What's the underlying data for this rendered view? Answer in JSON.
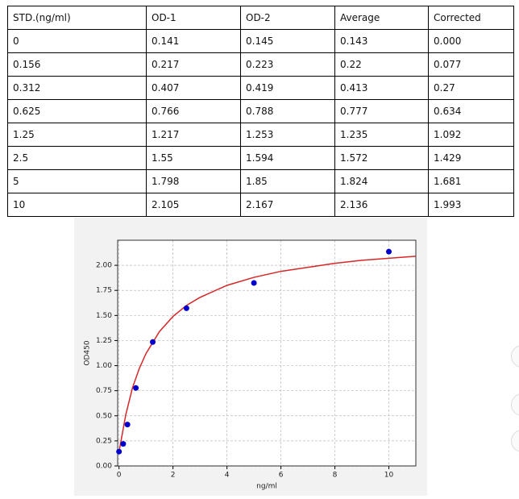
{
  "table": {
    "header": [
      "STD.(ng/ml)",
      "OD-1",
      "OD-2",
      "Average",
      "Corrected"
    ],
    "rows": [
      [
        "0",
        "0.141",
        "0.145",
        "0.143",
        "0.000"
      ],
      [
        "0.156",
        "0.217",
        "0.223",
        "0.22",
        "0.077"
      ],
      [
        "0.312",
        "0.407",
        "0.419",
        "0.413",
        "0.27"
      ],
      [
        "0.625",
        "0.766",
        "0.788",
        "0.777",
        "0.634"
      ],
      [
        "1.25",
        "1.217",
        "1.253",
        "1.235",
        "1.092"
      ],
      [
        "2.5",
        "1.55",
        "1.594",
        "1.572",
        "1.429"
      ],
      [
        "5",
        "1.798",
        "1.85",
        "1.824",
        "1.681"
      ],
      [
        "10",
        "2.105",
        "2.167",
        "2.136",
        "1.993"
      ]
    ]
  },
  "chart_data": {
    "type": "scatter",
    "xlabel": "ng/ml",
    "ylabel": "OD450",
    "xlim": [
      -0.05,
      11
    ],
    "ylim": [
      0,
      2.25
    ],
    "xticks": [
      0,
      2,
      4,
      6,
      8,
      10
    ],
    "yticks": [
      {
        "value": 0,
        "label": "0.00"
      },
      {
        "value": 0.25,
        "label": "0.25"
      },
      {
        "value": 0.5,
        "label": "0.50"
      },
      {
        "value": 0.75,
        "label": "0.75"
      },
      {
        "value": 1,
        "label": "1.00"
      },
      {
        "value": 1.25,
        "label": "1.25"
      },
      {
        "value": 1.5,
        "label": "1.50"
      },
      {
        "value": 1.75,
        "label": "1.75"
      },
      {
        "value": 2,
        "label": "2.00"
      }
    ],
    "grid": true,
    "series": [
      {
        "style": "line",
        "color": "#d62728",
        "x": [
          0,
          0.25,
          0.5,
          0.75,
          1,
          1.5,
          2,
          2.5,
          3,
          4,
          5,
          6,
          7,
          8,
          9,
          10,
          11
        ],
        "values": [
          0.14,
          0.51,
          0.78,
          0.97,
          1.12,
          1.34,
          1.49,
          1.6,
          1.68,
          1.8,
          1.88,
          1.94,
          1.98,
          2.02,
          2.05,
          2.07,
          2.09
        ]
      },
      {
        "style": "points",
        "color": "#0000cc",
        "x": [
          0,
          0.156,
          0.312,
          0.625,
          1.25,
          2.5,
          5,
          10
        ],
        "values": [
          0.143,
          0.22,
          0.413,
          0.777,
          1.235,
          1.572,
          1.824,
          2.136
        ]
      }
    ]
  }
}
